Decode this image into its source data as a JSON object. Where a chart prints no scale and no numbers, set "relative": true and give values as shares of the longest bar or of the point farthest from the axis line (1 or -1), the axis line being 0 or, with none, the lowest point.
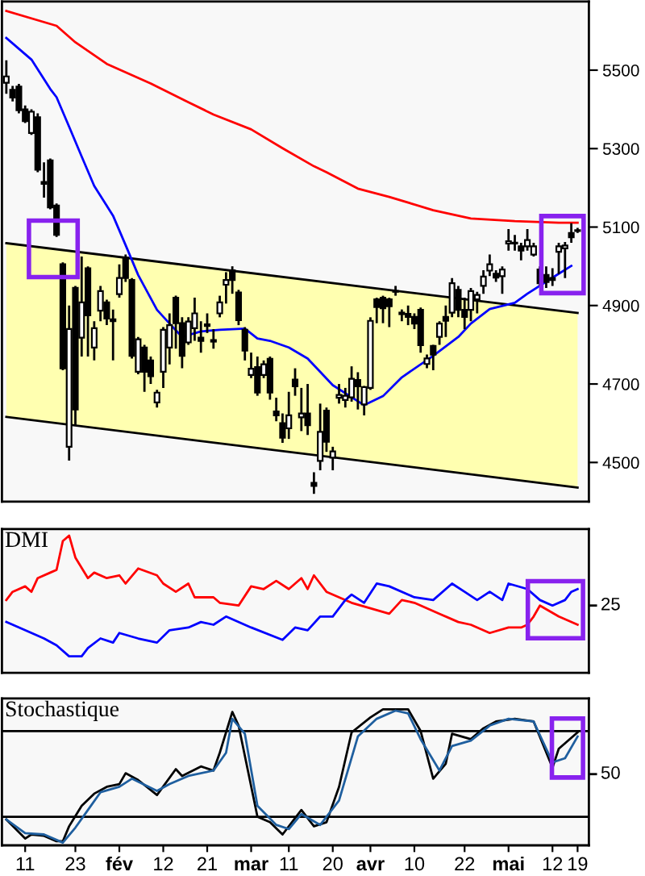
{
  "chart_data": [
    {
      "type": "candlestick",
      "categories": [
        null,
        null,
        null,
        null,
        null,
        null,
        null,
        null,
        null,
        null,
        null,
        null,
        null,
        null,
        null,
        null,
        null,
        null,
        null,
        null,
        null,
        null,
        null,
        null,
        null,
        null,
        null,
        null,
        null,
        null,
        null,
        null,
        null,
        null,
        null,
        null,
        null,
        null,
        null,
        null,
        null,
        null,
        null,
        null,
        null,
        null,
        null,
        null,
        null,
        null,
        null,
        null,
        null,
        null,
        null,
        null,
        null,
        null,
        null,
        null,
        null,
        null,
        null,
        null,
        null,
        null,
        null,
        null,
        null,
        null,
        null,
        null,
        null,
        null,
        null,
        null,
        null,
        null,
        null,
        null,
        null,
        null,
        null,
        null,
        null,
        null,
        null,
        null,
        null,
        null,
        null,
        null
      ],
      "ohlc": [
        [
          5468,
          5525,
          5440,
          5484
        ],
        [
          5450,
          5460,
          5420,
          5430
        ],
        [
          5458,
          5465,
          5390,
          5398
        ],
        [
          5400,
          5410,
          5365,
          5370
        ],
        [
          5340,
          5400,
          5335,
          5394
        ],
        [
          5380,
          5390,
          5240,
          5246
        ],
        [
          5215,
          5265,
          5175,
          5210
        ],
        [
          5270,
          5275,
          5145,
          5150
        ],
        [
          5155,
          5160,
          5075,
          5080
        ],
        [
          5005,
          5010,
          4735,
          4740
        ],
        [
          4540,
          4900,
          4505,
          4840
        ],
        [
          4945,
          4950,
          4595,
          4635
        ],
        [
          4818,
          5025,
          4770,
          4908
        ],
        [
          4995,
          5000,
          4770,
          4875
        ],
        [
          4793,
          4860,
          4760,
          4842
        ],
        [
          4887,
          4950,
          4860,
          4937
        ],
        [
          4908,
          4915,
          4850,
          4867
        ],
        [
          4865,
          4890,
          4760,
          4860
        ],
        [
          4929,
          5005,
          4920,
          4970
        ],
        [
          5022,
          5030,
          4960,
          4970
        ],
        [
          4965,
          4970,
          4765,
          4772
        ],
        [
          4731,
          4820,
          4725,
          4814
        ],
        [
          4793,
          4800,
          4680,
          4731
        ],
        [
          4760,
          4770,
          4700,
          4720
        ],
        [
          4653,
          4685,
          4640,
          4678
        ],
        [
          4731,
          4845,
          4690,
          4838
        ],
        [
          4793,
          4880,
          4750,
          4850
        ],
        [
          4920,
          4925,
          4790,
          4855
        ],
        [
          4855,
          4870,
          4740,
          4772
        ],
        [
          4806,
          4870,
          4800,
          4859
        ],
        [
          4842,
          4920,
          4810,
          4880
        ],
        [
          4818,
          4860,
          4780,
          4810
        ],
        [
          4852,
          4880,
          4830,
          4848
        ],
        [
          4812,
          4840,
          4790,
          4808
        ],
        [
          4880,
          4925,
          4870,
          4908
        ],
        [
          4953,
          4985,
          4905,
          4965
        ],
        [
          4990,
          5000,
          4930,
          4965
        ],
        [
          4933,
          4940,
          4850,
          4863
        ],
        [
          4838,
          4845,
          4760,
          4785
        ],
        [
          4723,
          4780,
          4715,
          4739
        ],
        [
          4743,
          4770,
          4670,
          4678
        ],
        [
          4723,
          4760,
          4715,
          4750
        ],
        [
          4764,
          4770,
          4660,
          4678
        ],
        [
          4630,
          4665,
          4605,
          4620
        ],
        [
          4600,
          4625,
          4550,
          4563
        ],
        [
          4587,
          4680,
          4560,
          4620
        ],
        [
          4711,
          4740,
          4670,
          4694
        ],
        [
          4615,
          4690,
          4580,
          4625
        ],
        [
          4625,
          4700,
          4570,
          4595
        ],
        [
          4448,
          4475,
          4420,
          4440
        ],
        [
          4504,
          4650,
          4480,
          4578
        ],
        [
          4632,
          4640,
          4527,
          4553
        ],
        [
          4512,
          4540,
          4480,
          4528
        ],
        [
          4665,
          4700,
          4650,
          4672
        ],
        [
          4659,
          4690,
          4640,
          4670
        ],
        [
          4666,
          4745,
          4655,
          4713
        ],
        [
          4710,
          4730,
          4635,
          4694
        ],
        [
          4648,
          4695,
          4620,
          4692
        ],
        [
          4690,
          4870,
          4685,
          4861
        ],
        [
          4916,
          4920,
          4855,
          4896
        ],
        [
          4920,
          4925,
          4855,
          4893
        ],
        [
          4916,
          4920,
          4845,
          4898
        ],
        [
          4937,
          4950,
          4925,
          4935
        ],
        [
          4882,
          4890,
          4860,
          4878
        ],
        [
          4879,
          4900,
          4850,
          4871
        ],
        [
          4871,
          4880,
          4840,
          4854
        ],
        [
          4889,
          4895,
          4780,
          4799
        ],
        [
          4751,
          4775,
          4740,
          4765
        ],
        [
          4797,
          4800,
          4735,
          4775
        ],
        [
          4820,
          4860,
          4800,
          4854
        ],
        [
          4871,
          4900,
          4820,
          4861
        ],
        [
          4882,
          4970,
          4870,
          4957
        ],
        [
          4940,
          4950,
          4870,
          4889
        ],
        [
          4889,
          4920,
          4840,
          4871
        ],
        [
          4889,
          4945,
          4860,
          4937
        ],
        [
          4916,
          4935,
          4880,
          4927
        ],
        [
          4950,
          4990,
          4930,
          4974
        ],
        [
          4989,
          5030,
          4975,
          5005
        ],
        [
          4981,
          4990,
          4960,
          4971
        ],
        [
          4975,
          5000,
          4930,
          4992
        ],
        [
          5058,
          5095,
          5040,
          5064
        ],
        [
          5060,
          5080,
          5040,
          5058
        ],
        [
          5051,
          5060,
          5015,
          5040
        ],
        [
          5051,
          5095,
          5040,
          5067
        ],
        [
          5030,
          5060,
          5025,
          5051
        ],
        [
          4992,
          5000,
          4950,
          4957
        ],
        [
          4978,
          5000,
          4945,
          4960
        ],
        [
          4970,
          4995,
          4950,
          4965
        ],
        [
          5037,
          5060,
          4980,
          5051
        ],
        [
          5046,
          5062,
          4970,
          5053
        ],
        [
          5085,
          5110,
          5060,
          5074
        ],
        [
          5092,
          5098,
          5085,
          5090
        ]
      ],
      "series": [
        {
          "type": "line",
          "color": "#000000",
          "values": [
            5059,
            null,
            null,
            null,
            null,
            null,
            null,
            null,
            null,
            null,
            null,
            null,
            null,
            null,
            null,
            null,
            null,
            null,
            null,
            null,
            null,
            null,
            null,
            null,
            null,
            null,
            null,
            null,
            null,
            null,
            null,
            null,
            null,
            null,
            null,
            null,
            null,
            null,
            null,
            null,
            null,
            null,
            null,
            null,
            null,
            null,
            null,
            null,
            null,
            null,
            null,
            null,
            null,
            null,
            null,
            null,
            null,
            null,
            null,
            null,
            null,
            null,
            null,
            null,
            null,
            null,
            null,
            null,
            null,
            null,
            null,
            null,
            null,
            null,
            null,
            null,
            null,
            null,
            null,
            null,
            null,
            null,
            null,
            null,
            null,
            null,
            null,
            null,
            null,
            null,
            null,
            4881
          ]
        },
        {
          "type": "line",
          "color": "#000000",
          "values": [
            4616,
            null,
            null,
            null,
            null,
            null,
            null,
            null,
            null,
            null,
            null,
            null,
            null,
            null,
            null,
            null,
            null,
            null,
            null,
            null,
            null,
            null,
            null,
            null,
            null,
            null,
            null,
            null,
            null,
            null,
            null,
            null,
            null,
            null,
            null,
            null,
            null,
            null,
            null,
            null,
            null,
            null,
            null,
            null,
            null,
            null,
            null,
            null,
            null,
            null,
            null,
            null,
            null,
            null,
            null,
            null,
            null,
            null,
            null,
            null,
            null,
            null,
            null,
            null,
            null,
            null,
            null,
            null,
            null,
            null,
            null,
            null,
            null,
            null,
            null,
            null,
            null,
            null,
            null,
            null,
            null,
            null,
            null,
            null,
            null,
            null,
            null,
            null,
            null,
            null,
            null,
            4436
          ]
        },
        {
          "type": "line",
          "color": "#ff0000",
          "values": [
            5651,
            null,
            null,
            null,
            null,
            null,
            null,
            null,
            5613,
            null,
            null,
            5571,
            null,
            null,
            null,
            null,
            5516,
            null,
            null,
            null,
            null,
            null,
            null,
            5466,
            null,
            null,
            null,
            null,
            null,
            5418,
            null,
            null,
            null,
            5387,
            null,
            null,
            null,
            null,
            null,
            5349,
            null,
            null,
            null,
            null,
            5301,
            null,
            null,
            null,
            null,
            5255,
            null,
            5240,
            null,
            null,
            null,
            null,
            5198,
            null,
            null,
            null,
            null,
            5177,
            null,
            null,
            null,
            null,
            null,
            null,
            5143,
            null,
            null,
            null,
            null,
            null,
            5122,
            null,
            null,
            null,
            null,
            null,
            null,
            5115,
            null,
            null,
            null,
            null,
            null,
            null,
            5111,
            null,
            null,
            5111
          ]
        },
        {
          "type": "line",
          "color": "#0000ff",
          "values": [
            5582,
            null,
            null,
            null,
            5527,
            null,
            null,
            5452,
            5431,
            null,
            5356,
            null,
            5280,
            null,
            5205,
            null,
            null,
            5129,
            null,
            5054,
            null,
            4978,
            null,
            null,
            4889,
            null,
            4854,
            null,
            4820,
            null,
            null,
            4834,
            null,
            null,
            4838,
            null,
            null,
            null,
            4841,
            null,
            4816,
            null,
            4810,
            null,
            null,
            4793,
            null,
            null,
            4765,
            null,
            null,
            null,
            4697,
            null,
            null,
            null,
            null,
            4646,
            null,
            null,
            4669,
            null,
            null,
            4717,
            null,
            null,
            null,
            null,
            4772,
            null,
            null,
            null,
            4820,
            null,
            4854,
            null,
            null,
            4891,
            null,
            null,
            null,
            4907,
            null,
            4930,
            null,
            null,
            null,
            4971,
            null,
            null,
            5001,
            null
          ]
        }
      ],
      "ylim": [
        4400,
        5675
      ],
      "yticks": [
        4500,
        4700,
        4900,
        5100,
        5300,
        5500
      ],
      "tick_labels": "y"
    },
    {
      "type": "line",
      "title": "DMI",
      "relative": true,
      "annotations": [
        "25"
      ],
      "categories": [
        null,
        null,
        null,
        null,
        null,
        null,
        null,
        null,
        null,
        null,
        null,
        null,
        null,
        null,
        null,
        null,
        null,
        null,
        null,
        null,
        null,
        null,
        null,
        null,
        null,
        null,
        null,
        null,
        null,
        null,
        null,
        null,
        null,
        null,
        null,
        null,
        null,
        null,
        null,
        null,
        null,
        null,
        null,
        null,
        null,
        null,
        null,
        null,
        null,
        null,
        null,
        null,
        null,
        null,
        null,
        null,
        null,
        null,
        null,
        null,
        null,
        null,
        null,
        null,
        null,
        null,
        null,
        null,
        null,
        null,
        null,
        null,
        null,
        null,
        null,
        null,
        null,
        null,
        null,
        null,
        null,
        null,
        null,
        null,
        null,
        null,
        null,
        null,
        null,
        null,
        null,
        null
      ],
      "series": [
        {
          "color": "#ff0000",
          "values": [
            0.53,
            0.59,
            null,
            0.63,
            0.59,
            0.69,
            null,
            0.73,
            0.75,
            0.96,
            1,
            0.84,
            null,
            0.69,
            0.73,
            null,
            0.69,
            null,
            0.71,
            0.65,
            null,
            0.76,
            null,
            null,
            0.71,
            0.65,
            null,
            0.59,
            null,
            0.65,
            0.55,
            null,
            null,
            0.55,
            0.51,
            null,
            null,
            0.49,
            null,
            0.63,
            null,
            0.61,
            null,
            0.67,
            null,
            0.61,
            null,
            0.69,
            0.61,
            0.71,
            null,
            0.59,
            null,
            0.55,
            null,
            0.51,
            null,
            null,
            0.47,
            null,
            null,
            0.43,
            null,
            0.53,
            null,
            0.51,
            null,
            null,
            null,
            0.43,
            null,
            null,
            0.37,
            null,
            0.35,
            null,
            null,
            0.29,
            null,
            null,
            0.33,
            null,
            0.33,
            0.35,
            0.41,
            0.49,
            null,
            null,
            0.41,
            null,
            null,
            0.35
          ]
        },
        {
          "color": "#0000ff",
          "values": [
            0.37,
            null,
            null,
            0.31,
            null,
            null,
            0.25,
            null,
            0.2,
            null,
            0.12,
            null,
            0.12,
            0.18,
            null,
            0.25,
            null,
            0.22,
            0.29,
            null,
            null,
            0.25,
            null,
            null,
            0.22,
            null,
            0.31,
            null,
            null,
            0.33,
            null,
            0.37,
            null,
            0.35,
            null,
            0.41,
            null,
            null,
            null,
            0.33,
            null,
            null,
            null,
            null,
            0.24,
            null,
            0.33,
            null,
            0.31,
            null,
            0.41,
            null,
            0.41,
            null,
            0.53,
            0.57,
            null,
            0.51,
            null,
            0.65,
            null,
            0.63,
            null,
            null,
            null,
            0.55,
            null,
            null,
            0.53,
            null,
            null,
            0.65,
            null,
            0.59,
            null,
            0.53,
            null,
            0.59,
            null,
            0.53,
            0.65,
            null,
            null,
            0.61,
            null,
            0.53,
            null,
            0.49,
            null,
            0.53,
            0.59,
            0.61
          ]
        }
      ],
      "tick_labels": false
    },
    {
      "type": "line",
      "title": "Stochastique",
      "relative": true,
      "annotations": [
        "50"
      ],
      "categories": [
        null,
        null,
        null,
        "11",
        null,
        null,
        null,
        null,
        null,
        null,
        null,
        "23",
        null,
        null,
        null,
        null,
        null,
        null,
        "fév",
        null,
        null,
        null,
        null,
        null,
        null,
        "12",
        null,
        null,
        null,
        null,
        null,
        null,
        "21",
        null,
        null,
        null,
        null,
        null,
        null,
        "mar",
        null,
        null,
        null,
        null,
        null,
        "11",
        null,
        null,
        null,
        null,
        null,
        null,
        "20",
        null,
        null,
        null,
        null,
        null,
        "avr",
        null,
        null,
        null,
        null,
        null,
        null,
        "10",
        null,
        null,
        null,
        null,
        null,
        null,
        null,
        "22",
        null,
        null,
        null,
        null,
        null,
        null,
        "mai",
        null,
        null,
        null,
        null,
        null,
        null,
        "12",
        null,
        null,
        null,
        "19"
      ],
      "series": [
        {
          "color": "#000000",
          "values": [
            0.19,
            null,
            null,
            0.05,
            0.08,
            null,
            0.07,
            null,
            0.03,
            0.03,
            0.14,
            null,
            0.29,
            null,
            0.38,
            null,
            0.43,
            null,
            0.45,
            0.53,
            null,
            0.48,
            null,
            null,
            0.37,
            null,
            null,
            0.56,
            0.51,
            null,
            null,
            0.58,
            null,
            0.55,
            0.68,
            null,
            0.98,
            0.88,
            null,
            null,
            0.21,
            null,
            0.17,
            null,
            0.08,
            null,
            null,
            0.26,
            null,
            0.14,
            null,
            0.17,
            null,
            0.43,
            null,
            0.83,
            null,
            null,
            0.94,
            null,
            1,
            null,
            null,
            null,
            1,
            null,
            0.84,
            null,
            0.49,
            null,
            0.6,
            0.82,
            null,
            null,
            0.78,
            null,
            0.86,
            null,
            0.91,
            null,
            null,
            0.93,
            null,
            null,
            0.91,
            null,
            null,
            0.57,
            0.71,
            null,
            null,
            0.83
          ]
        },
        {
          "color": "#1f5f9f",
          "values": [
            0.19,
            null,
            null,
            0.09,
            null,
            null,
            0.08,
            null,
            null,
            0.02,
            null,
            0.13,
            null,
            0.26,
            null,
            0.39,
            null,
            null,
            0.43,
            null,
            0.49,
            null,
            null,
            null,
            0.4,
            null,
            0.45,
            null,
            null,
            0.51,
            null,
            null,
            null,
            0.55,
            null,
            0.68,
            0.93,
            null,
            0.82,
            null,
            0.29,
            null,
            null,
            0.15,
            null,
            0.12,
            null,
            0.23,
            null,
            null,
            0.15,
            null,
            null,
            0.33,
            null,
            null,
            0.8,
            null,
            null,
            0.93,
            null,
            null,
            0.99,
            null,
            0.97,
            null,
            0.78,
            null,
            null,
            0.55,
            null,
            0.73,
            null,
            null,
            0.77,
            null,
            null,
            0.88,
            null,
            null,
            0.93,
            null,
            null,
            null,
            0.91,
            null,
            null,
            0.61,
            null,
            0.64,
            null,
            0.8
          ]
        }
      ],
      "ref_lines": [
        {
          "axis": "y",
          "value": 0.84,
          "color": "#000000"
        },
        {
          "axis": "y",
          "value": 0.21,
          "color": "#000000"
        }
      ],
      "tick_labels": "x"
    }
  ]
}
